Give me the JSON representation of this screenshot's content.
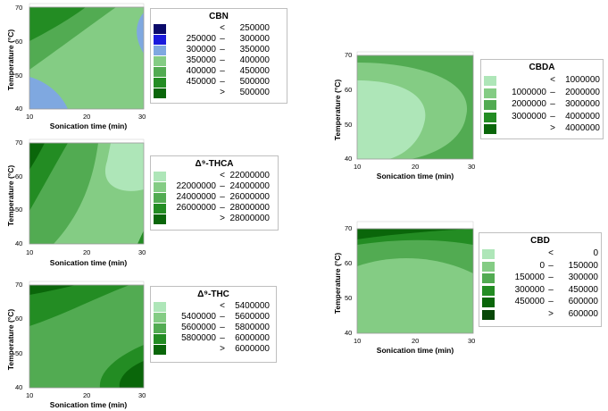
{
  "chart_data": [
    {
      "type": "contour",
      "title": "CBN",
      "xlabel": "Sonication time (min)",
      "ylabel": "Temperature (°C)",
      "xlim": [
        10,
        30
      ],
      "ylim": [
        40,
        70
      ],
      "xticks": [
        "10",
        "20",
        "30"
      ],
      "yticks": [
        "40",
        "50",
        "60",
        "70"
      ],
      "levels": [
        {
          "op": "<",
          "lo": "",
          "hi": "250000",
          "color": "#0a0a6a"
        },
        {
          "op": "–",
          "lo": "250000",
          "hi": "300000",
          "color": "#1a1adc"
        },
        {
          "op": "–",
          "lo": "300000",
          "hi": "350000",
          "color": "#7fa8e0"
        },
        {
          "op": "–",
          "lo": "350000",
          "hi": "400000",
          "color": "#84cc84"
        },
        {
          "op": "–",
          "lo": "400000",
          "hi": "450000",
          "color": "#52ab52"
        },
        {
          "op": "–",
          "lo": "450000",
          "hi": "500000",
          "color": "#238c23"
        },
        {
          "op": ">",
          "lo": "",
          "hi": "500000",
          "color": "#0a660a"
        }
      ]
    },
    {
      "type": "contour",
      "title": "Δ⁹-THCA",
      "xlabel": "Sonication time (min)",
      "ylabel": "Temperature (°C)",
      "xlim": [
        10,
        30
      ],
      "ylim": [
        40,
        70
      ],
      "xticks": [
        "10",
        "20",
        "30"
      ],
      "yticks": [
        "40",
        "50",
        "60",
        "70"
      ],
      "levels": [
        {
          "op": "<",
          "lo": "",
          "hi": "22000000",
          "color": "#aee6b8"
        },
        {
          "op": "–",
          "lo": "22000000",
          "hi": "24000000",
          "color": "#84cc84"
        },
        {
          "op": "–",
          "lo": "24000000",
          "hi": "26000000",
          "color": "#52ab52"
        },
        {
          "op": "–",
          "lo": "26000000",
          "hi": "28000000",
          "color": "#238c23"
        },
        {
          "op": ">",
          "lo": "",
          "hi": "28000000",
          "color": "#0a660a"
        }
      ]
    },
    {
      "type": "contour",
      "title": "Δ⁹-THC",
      "xlabel": "Sonication time (min)",
      "ylabel": "Temperature (°C)",
      "xlim": [
        10,
        30
      ],
      "ylim": [
        40,
        70
      ],
      "xticks": [
        "10",
        "20",
        "30"
      ],
      "yticks": [
        "40",
        "50",
        "60",
        "70"
      ],
      "levels": [
        {
          "op": "<",
          "lo": "",
          "hi": "5400000",
          "color": "#aee6b8"
        },
        {
          "op": "–",
          "lo": "5400000",
          "hi": "5600000",
          "color": "#84cc84"
        },
        {
          "op": "–",
          "lo": "5600000",
          "hi": "5800000",
          "color": "#52ab52"
        },
        {
          "op": "–",
          "lo": "5800000",
          "hi": "6000000",
          "color": "#238c23"
        },
        {
          "op": ">",
          "lo": "",
          "hi": "6000000",
          "color": "#0a660a"
        }
      ]
    },
    {
      "type": "contour",
      "title": "CBDA",
      "xlabel": "Sonication time (min)",
      "ylabel": "Temperature (°C)",
      "xlim": [
        10,
        30
      ],
      "ylim": [
        40,
        70
      ],
      "xticks": [
        "10",
        "20",
        "30"
      ],
      "yticks": [
        "40",
        "50",
        "60",
        "70"
      ],
      "levels": [
        {
          "op": "<",
          "lo": "",
          "hi": "1000000",
          "color": "#aee6b8"
        },
        {
          "op": "–",
          "lo": "1000000",
          "hi": "2000000",
          "color": "#84cc84"
        },
        {
          "op": "–",
          "lo": "2000000",
          "hi": "3000000",
          "color": "#52ab52"
        },
        {
          "op": "–",
          "lo": "3000000",
          "hi": "4000000",
          "color": "#238c23"
        },
        {
          "op": ">",
          "lo": "",
          "hi": "4000000",
          "color": "#0a660a"
        }
      ]
    },
    {
      "type": "contour",
      "title": "CBD",
      "xlabel": "Sonication time (min)",
      "ylabel": "Temperature (°C)",
      "xlim": [
        10,
        30
      ],
      "ylim": [
        40,
        70
      ],
      "xticks": [
        "10",
        "20",
        "30"
      ],
      "yticks": [
        "40",
        "50",
        "60",
        "70"
      ],
      "levels": [
        {
          "op": "<",
          "lo": "",
          "hi": "0",
          "color": "#aee6b8"
        },
        {
          "op": "–",
          "lo": "0",
          "hi": "150000",
          "color": "#84cc84"
        },
        {
          "op": "–",
          "lo": "150000",
          "hi": "300000",
          "color": "#52ab52"
        },
        {
          "op": "–",
          "lo": "300000",
          "hi": "450000",
          "color": "#238c23"
        },
        {
          "op": "–",
          "lo": "450000",
          "hi": "600000",
          "color": "#0a660a"
        },
        {
          "op": ">",
          "lo": "",
          "hi": "600000",
          "color": "#074707"
        }
      ]
    }
  ]
}
